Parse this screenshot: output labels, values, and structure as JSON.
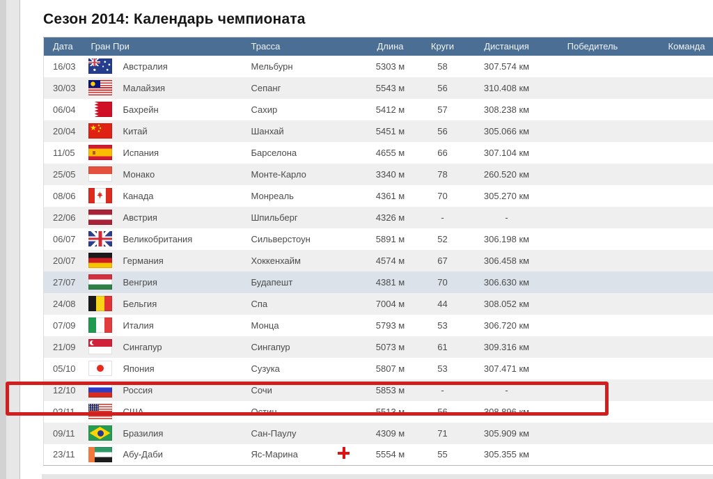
{
  "page": {
    "title": "Сезон 2014: Календарь чемпионата"
  },
  "colors": {
    "header_bg": "#4a6e94",
    "row_stripe": "#efefef",
    "row_highlight": "#dbe2ea",
    "annotation_red": "#d11f1f"
  },
  "table": {
    "columns": [
      "Дата",
      "Гран При",
      "Трасса",
      "Длина",
      "Круги",
      "Дистанция",
      "Победитель",
      "Команда"
    ],
    "rows": [
      {
        "date": "16/03",
        "flag": "australia",
        "country": "Австралия",
        "track": "Мельбурн",
        "length": "5303 м",
        "laps": "58",
        "distance": "307.574 км",
        "winner": "",
        "team": ""
      },
      {
        "date": "30/03",
        "flag": "malaysia",
        "country": "Малайзия",
        "track": "Сепанг",
        "length": "5543 м",
        "laps": "56",
        "distance": "310.408 км",
        "winner": "",
        "team": ""
      },
      {
        "date": "06/04",
        "flag": "bahrain",
        "country": "Бахрейн",
        "track": "Сахир",
        "length": "5412 м",
        "laps": "57",
        "distance": "308.238 км",
        "winner": "",
        "team": ""
      },
      {
        "date": "20/04",
        "flag": "china",
        "country": "Китай",
        "track": "Шанхай",
        "length": "5451 м",
        "laps": "56",
        "distance": "305.066 км",
        "winner": "",
        "team": ""
      },
      {
        "date": "11/05",
        "flag": "spain",
        "country": "Испания",
        "track": "Барселона",
        "length": "4655 м",
        "laps": "66",
        "distance": "307.104 км",
        "winner": "",
        "team": ""
      },
      {
        "date": "25/05",
        "flag": "monaco",
        "country": "Монако",
        "track": "Монте-Карло",
        "length": "3340 м",
        "laps": "78",
        "distance": "260.520 км",
        "winner": "",
        "team": ""
      },
      {
        "date": "08/06",
        "flag": "canada",
        "country": "Канада",
        "track": "Монреаль",
        "length": "4361 м",
        "laps": "70",
        "distance": "305.270 км",
        "winner": "",
        "team": ""
      },
      {
        "date": "22/06",
        "flag": "austria",
        "country": "Австрия",
        "track": "Шпильберг",
        "length": "4326 м",
        "laps": "-",
        "distance": "-",
        "winner": "",
        "team": ""
      },
      {
        "date": "06/07",
        "flag": "uk",
        "country": "Великобритания",
        "track": "Сильверстоун",
        "length": "5891 м",
        "laps": "52",
        "distance": "306.198 км",
        "winner": "",
        "team": ""
      },
      {
        "date": "20/07",
        "flag": "germany",
        "country": "Германия",
        "track": "Хоккенхайм",
        "length": "4574 м",
        "laps": "67",
        "distance": "306.458 км",
        "winner": "",
        "team": ""
      },
      {
        "date": "27/07",
        "flag": "hungary",
        "country": "Венгрия",
        "track": "Будапешт",
        "length": "4381 м",
        "laps": "70",
        "distance": "306.630 км",
        "winner": "",
        "team": "",
        "highlight": true
      },
      {
        "date": "24/08",
        "flag": "belgium",
        "country": "Бельгия",
        "track": "Спа",
        "length": "7004 м",
        "laps": "44",
        "distance": "308.052 км",
        "winner": "",
        "team": ""
      },
      {
        "date": "07/09",
        "flag": "italy",
        "country": "Италия",
        "track": "Монца",
        "length": "5793 м",
        "laps": "53",
        "distance": "306.720 км",
        "winner": "",
        "team": ""
      },
      {
        "date": "21/09",
        "flag": "singapore",
        "country": "Сингапур",
        "track": "Сингапур",
        "length": "5073 м",
        "laps": "61",
        "distance": "309.316 км",
        "winner": "",
        "team": ""
      },
      {
        "date": "05/10",
        "flag": "japan",
        "country": "Япония",
        "track": "Сузука",
        "length": "5807 м",
        "laps": "53",
        "distance": "307.471 км",
        "winner": "",
        "team": ""
      },
      {
        "date": "12/10",
        "flag": "russia",
        "country": "Россия",
        "track": "Сочи",
        "length": "5853 м",
        "laps": "-",
        "distance": "-",
        "winner": "",
        "team": "",
        "annotated": true
      },
      {
        "date": "02/11",
        "flag": "usa",
        "country": "США",
        "track": "Остин",
        "length": "5513 м",
        "laps": "56",
        "distance": "308.896 км",
        "winner": "",
        "team": ""
      },
      {
        "date": "09/11",
        "flag": "brazil",
        "country": "Бразилия",
        "track": "Сан-Паулу",
        "length": "4309 м",
        "laps": "71",
        "distance": "305.909 км",
        "winner": "",
        "team": ""
      },
      {
        "date": "23/11",
        "flag": "abu-dhabi",
        "country": "Абу-Даби",
        "track": "Яс-Марина",
        "length": "5554 м",
        "laps": "55",
        "distance": "305.355 км",
        "winner": "",
        "team": ""
      }
    ]
  },
  "annotations": {
    "highlight_box_row": "12/10 Россия Сочи",
    "plus_cursor": "+"
  }
}
